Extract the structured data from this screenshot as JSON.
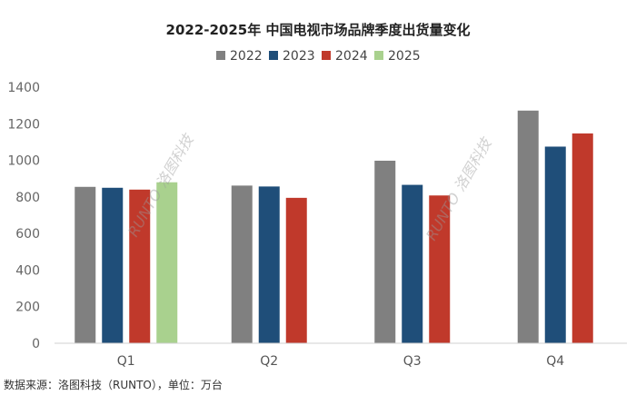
{
  "chart_data": {
    "type": "bar",
    "title": "2022-2025年 中国电视市场品牌季度出货量变化",
    "categories": [
      "Q1",
      "Q2",
      "Q3",
      "Q4"
    ],
    "series": [
      {
        "name": "2022",
        "color": "#808080",
        "values": [
          855,
          862,
          998,
          1272
        ]
      },
      {
        "name": "2023",
        "color": "#1f4e79",
        "values": [
          850,
          857,
          866,
          1075
        ]
      },
      {
        "name": "2024",
        "color": "#c0392b",
        "values": [
          840,
          795,
          808,
          1147
        ]
      },
      {
        "name": "2025",
        "color": "#a9d18e",
        "values": [
          880,
          null,
          null,
          null
        ]
      }
    ],
    "ylim": [
      0,
      1400
    ],
    "yticks": [
      0,
      200,
      400,
      600,
      800,
      1000,
      1200,
      1400
    ],
    "xlabel": "",
    "ylabel": "",
    "grid": false,
    "legend_position": "top-center"
  },
  "source_note": "数据来源：洛图科技（RUNTO），单位：万台",
  "watermark": "RUNTO 洛图科技"
}
